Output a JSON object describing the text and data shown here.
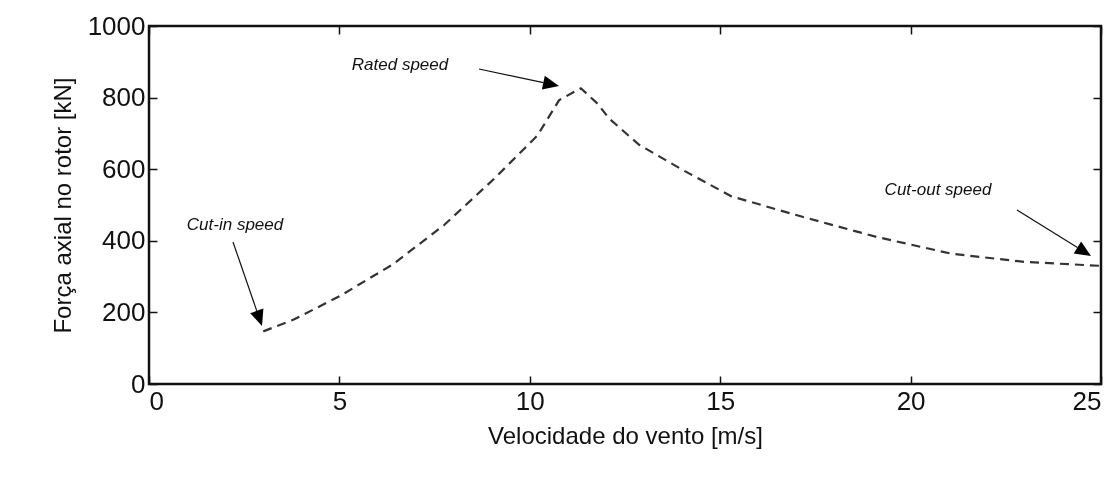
{
  "chart_data": {
    "type": "line",
    "xlabel": "Velocidade do vento [m/s]",
    "ylabel": "Força axial no rotor [kN]",
    "xlim": [
      0,
      25
    ],
    "xticks": [
      0,
      5,
      10,
      15,
      20,
      25
    ],
    "ylim": [
      0,
      1000
    ],
    "yticks": [
      0,
      200,
      400,
      600,
      800,
      1000
    ],
    "grid": false,
    "line_style": "dashed",
    "marker": "none",
    "series": [
      {
        "color": "#333333",
        "x": [
          3,
          3.8,
          5,
          6.4,
          7.75,
          9.07,
          10.2,
          10.77,
          11.34,
          11.78,
          12.08,
          12.86,
          14.03,
          15.3,
          17.16,
          19.1,
          21.07,
          23,
          25
        ],
        "values": [
          147,
          180,
          245,
          334,
          444,
          574,
          694,
          793,
          826,
          783,
          742,
          669,
          597,
          524,
          467,
          411,
          364,
          341,
          330
        ]
      }
    ],
    "annotations": [
      "Cut-in speed",
      "Rated speed",
      "Cut-out speed"
    ]
  }
}
